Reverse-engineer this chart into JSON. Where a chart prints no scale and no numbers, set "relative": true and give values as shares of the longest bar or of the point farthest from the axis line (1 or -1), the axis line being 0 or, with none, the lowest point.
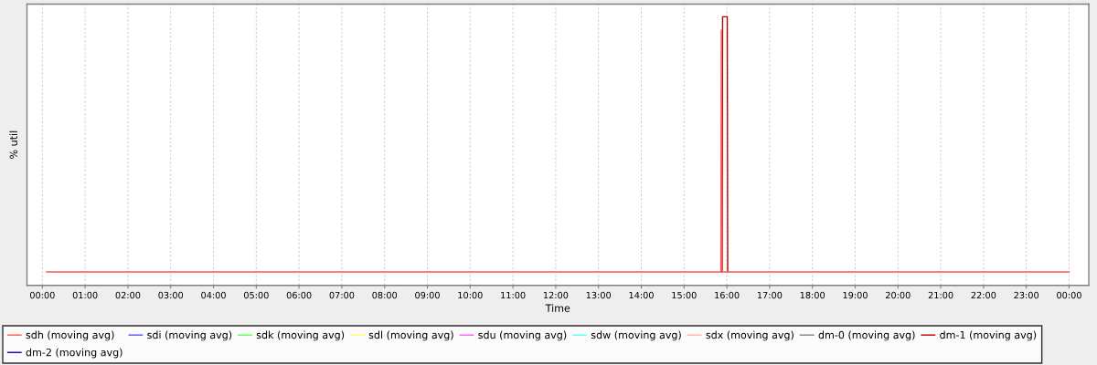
{
  "chart_data": {
    "type": "line",
    "xlabel": "Time",
    "ylabel": "% util",
    "relative": true,
    "grid": "x",
    "legend": "bottom",
    "line_style": "solid",
    "xlim": [
      -0.36,
      24.46
    ],
    "xticks": [
      {
        "value": 0,
        "label": "00:00"
      },
      {
        "value": 1,
        "label": "01:00"
      },
      {
        "value": 2,
        "label": "02:00"
      },
      {
        "value": 3,
        "label": "03:00"
      },
      {
        "value": 4,
        "label": "04:00"
      },
      {
        "value": 5,
        "label": "05:00"
      },
      {
        "value": 6,
        "label": "06:00"
      },
      {
        "value": 7,
        "label": "07:00"
      },
      {
        "value": 8,
        "label": "08:00"
      },
      {
        "value": 9,
        "label": "09:00"
      },
      {
        "value": 10,
        "label": "10:00"
      },
      {
        "value": 11,
        "label": "11:00"
      },
      {
        "value": 12,
        "label": "12:00"
      },
      {
        "value": 13,
        "label": "13:00"
      },
      {
        "value": 14,
        "label": "14:00"
      },
      {
        "value": 15,
        "label": "15:00"
      },
      {
        "value": 16,
        "label": "16:00"
      },
      {
        "value": 17,
        "label": "17:00"
      },
      {
        "value": 18,
        "label": "18:00"
      },
      {
        "value": 19,
        "label": "19:00"
      },
      {
        "value": 20,
        "label": "20:00"
      },
      {
        "value": 21,
        "label": "21:00"
      },
      {
        "value": 22,
        "label": "22:00"
      },
      {
        "value": 23,
        "label": "23:00"
      },
      {
        "value": 24,
        "label": "00:00"
      }
    ],
    "series": [
      {
        "name": "sdh (moving avg)",
        "color": "#ff5555",
        "x": [
          0.1,
          15.86,
          15.87,
          15.88,
          24.0
        ],
        "values": [
          0.05,
          0.05,
          0.95,
          0.05,
          0.05
        ]
      },
      {
        "name": "sdi (moving avg)",
        "color": "#5555ff"
      },
      {
        "name": "sdk (moving avg)",
        "color": "#55ff55"
      },
      {
        "name": "sdl (moving avg)",
        "color": "#ffff55"
      },
      {
        "name": "sdu (moving avg)",
        "color": "#ff55ff"
      },
      {
        "name": "sdw (moving avg)",
        "color": "#55ffff"
      },
      {
        "name": "sdx (moving avg)",
        "color": "#ffafaf"
      },
      {
        "name": "dm-0 (moving avg)",
        "color": "#808080"
      },
      {
        "name": "dm-1 (moving avg)",
        "color": "#c00000",
        "x": [
          15.89,
          15.9,
          16.01,
          16.02
        ],
        "values": [
          0.05,
          1,
          1,
          0.05
        ]
      },
      {
        "name": "dm-2 (moving avg)",
        "color": "#0000c0"
      }
    ]
  }
}
